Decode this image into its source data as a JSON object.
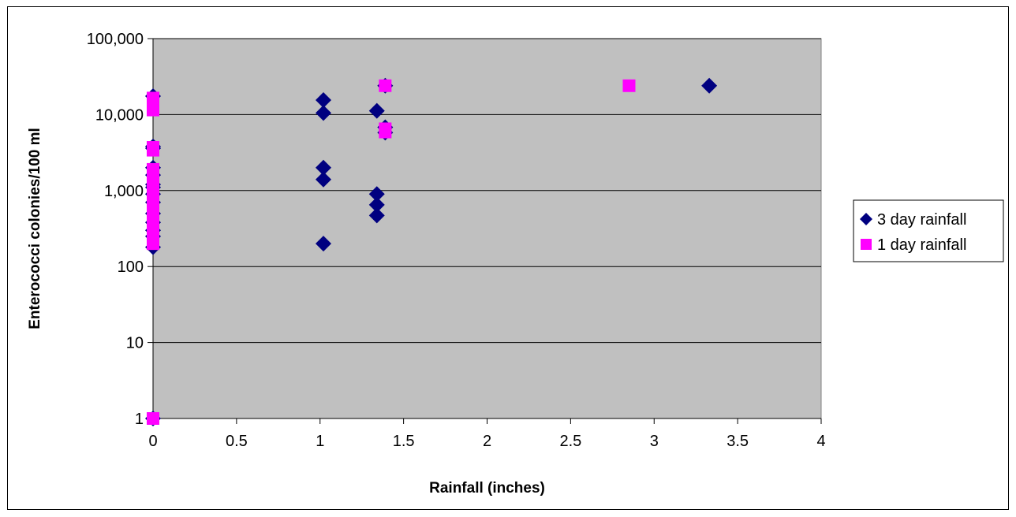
{
  "chart_data": {
    "type": "scatter",
    "xlabel": "Rainfall (inches)",
    "ylabel": "Enterococci colonies/100 ml",
    "xlim": [
      0,
      4
    ],
    "ylim": [
      1,
      100000
    ],
    "y_scale": "log",
    "x_ticks": [
      0,
      0.5,
      1,
      1.5,
      2,
      2.5,
      3,
      3.5,
      4
    ],
    "x_tick_labels": [
      "0",
      "0.5",
      "1",
      "1.5",
      "2",
      "2.5",
      "3",
      "3.5",
      "4"
    ],
    "y_ticks": [
      1,
      10,
      100,
      1000,
      10000,
      100000
    ],
    "y_tick_labels": [
      "1",
      "10",
      "100",
      "1,000",
      "10,000",
      "100,000"
    ],
    "grid": "horizontal",
    "plot_background": "#c0c0c0",
    "legend_position": "right",
    "series": [
      {
        "name": "3 day rainfall",
        "marker": "diamond",
        "color": "#000080",
        "points": [
          [
            0,
            17500
          ],
          [
            0,
            3800
          ],
          [
            0,
            3600
          ],
          [
            0,
            2000
          ],
          [
            0,
            1600
          ],
          [
            0,
            1200
          ],
          [
            0,
            1100
          ],
          [
            0,
            900
          ],
          [
            0,
            700
          ],
          [
            0,
            500
          ],
          [
            0,
            380
          ],
          [
            0,
            300
          ],
          [
            0,
            250
          ],
          [
            0,
            180
          ],
          [
            0,
            1
          ],
          [
            1.02,
            15500
          ],
          [
            1.02,
            10500
          ],
          [
            1.02,
            2000
          ],
          [
            1.02,
            1400
          ],
          [
            1.02,
            200
          ],
          [
            1.34,
            11200
          ],
          [
            1.34,
            900
          ],
          [
            1.34,
            650
          ],
          [
            1.34,
            470
          ],
          [
            1.39,
            24000
          ],
          [
            1.39,
            6800
          ],
          [
            1.39,
            5800
          ],
          [
            3.33,
            24000
          ]
        ]
      },
      {
        "name": "1 day rainfall",
        "marker": "square",
        "color": "#ff00ff",
        "points": [
          [
            0,
            16500
          ],
          [
            0,
            14000
          ],
          [
            0,
            11500
          ],
          [
            0,
            3700
          ],
          [
            0,
            3400
          ],
          [
            0,
            1900
          ],
          [
            0,
            1500
          ],
          [
            0,
            1200
          ],
          [
            0,
            950
          ],
          [
            0,
            800
          ],
          [
            0,
            650
          ],
          [
            0,
            520
          ],
          [
            0,
            420
          ],
          [
            0,
            330
          ],
          [
            0,
            260
          ],
          [
            0,
            200
          ],
          [
            0,
            1
          ],
          [
            1.39,
            24000
          ],
          [
            1.39,
            6500
          ],
          [
            1.39,
            5900
          ],
          [
            2.85,
            24000
          ]
        ]
      }
    ]
  }
}
